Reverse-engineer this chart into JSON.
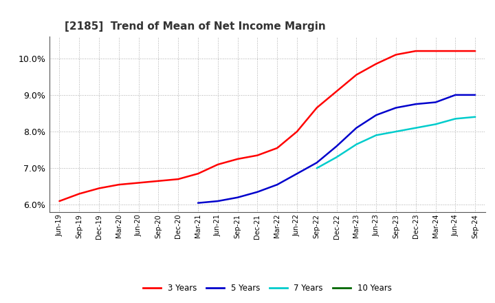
{
  "title": "[2185]  Trend of Mean of Net Income Margin",
  "x_labels": [
    "Jun-19",
    "Sep-19",
    "Dec-19",
    "Mar-20",
    "Jun-20",
    "Sep-20",
    "Dec-20",
    "Mar-21",
    "Jun-21",
    "Sep-21",
    "Dec-21",
    "Mar-22",
    "Jun-22",
    "Sep-22",
    "Dec-22",
    "Mar-23",
    "Jun-23",
    "Sep-23",
    "Dec-23",
    "Mar-24",
    "Jun-24",
    "Sep-24"
  ],
  "series_3y": [
    6.1,
    6.3,
    6.45,
    6.55,
    6.6,
    6.65,
    6.7,
    6.85,
    7.1,
    7.25,
    7.35,
    7.55,
    8.0,
    8.65,
    9.1,
    9.55,
    9.85,
    10.1,
    10.2,
    10.2,
    10.2,
    10.2
  ],
  "series_5y": [
    null,
    null,
    null,
    null,
    null,
    null,
    null,
    6.05,
    6.1,
    6.2,
    6.35,
    6.55,
    6.85,
    7.15,
    7.6,
    8.1,
    8.45,
    8.65,
    8.75,
    8.8,
    9.0,
    9.0
  ],
  "series_7y": [
    null,
    null,
    null,
    null,
    null,
    null,
    null,
    null,
    null,
    null,
    null,
    null,
    null,
    7.0,
    7.3,
    7.65,
    7.9,
    8.0,
    8.1,
    8.2,
    8.35,
    8.4
  ],
  "series_10y": [
    null,
    null,
    null,
    null,
    null,
    null,
    null,
    null,
    null,
    null,
    null,
    null,
    null,
    null,
    null,
    null,
    null,
    null,
    null,
    null,
    null,
    null
  ],
  "color_3y": "#ff0000",
  "color_5y": "#0000cc",
  "color_7y": "#00cccc",
  "color_10y": "#006600",
  "ylim": [
    5.8,
    10.6
  ],
  "yticks": [
    6.0,
    7.0,
    8.0,
    9.0,
    10.0
  ],
  "background_color": "#ffffff",
  "plot_bg_color": "#ffffff",
  "grid_color": "#aaaaaa",
  "legend_labels": [
    "3 Years",
    "5 Years",
    "7 Years",
    "10 Years"
  ]
}
